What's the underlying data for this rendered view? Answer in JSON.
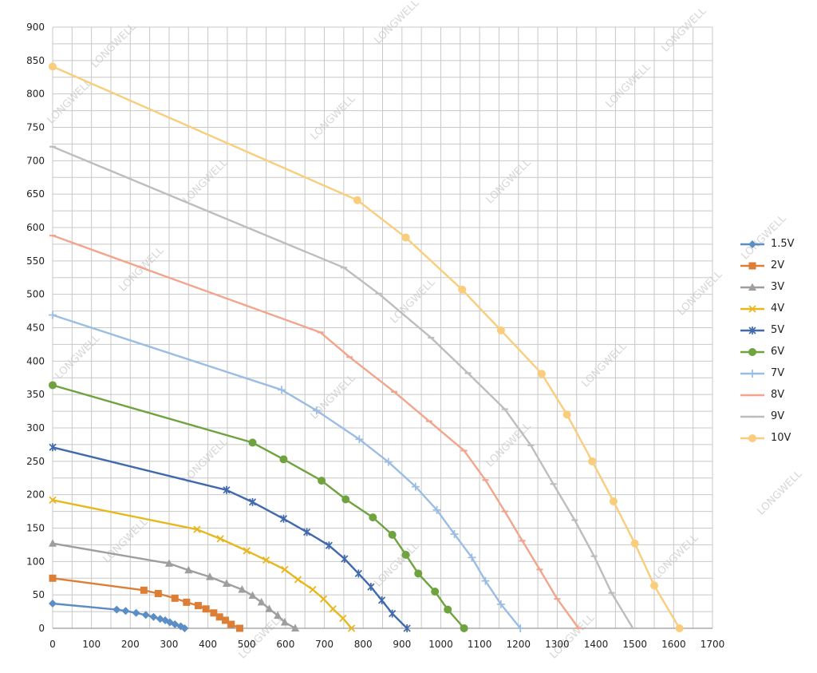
{
  "watermark": "LONGWELL",
  "chart_data": {
    "type": "line",
    "title": "",
    "xlabel": "",
    "ylabel": "",
    "xlim": [
      0,
      1700
    ],
    "ylim": [
      0,
      900
    ],
    "x_ticks": [
      0,
      100,
      200,
      300,
      400,
      500,
      600,
      700,
      800,
      900,
      1000,
      1100,
      1200,
      1300,
      1400,
      1500,
      1600,
      1700
    ],
    "y_ticks": [
      0,
      50,
      100,
      150,
      200,
      250,
      300,
      350,
      400,
      450,
      500,
      550,
      600,
      650,
      700,
      750,
      800,
      850,
      900
    ],
    "grid": true,
    "legend_position": "right",
    "series": [
      {
        "name": "1.5V",
        "color": "#5b8ec4",
        "marker": "diamond",
        "points": [
          [
            0,
            37
          ],
          [
            165,
            28
          ],
          [
            188,
            26
          ],
          [
            215,
            23
          ],
          [
            240,
            20
          ],
          [
            260,
            17
          ],
          [
            277,
            14
          ],
          [
            290,
            12
          ],
          [
            302,
            9
          ],
          [
            315,
            6
          ],
          [
            330,
            3
          ],
          [
            340,
            0
          ]
        ]
      },
      {
        "name": "2V",
        "color": "#dd7e36",
        "marker": "square",
        "points": [
          [
            0,
            75
          ],
          [
            235,
            57
          ],
          [
            272,
            52
          ],
          [
            315,
            45
          ],
          [
            345,
            39
          ],
          [
            375,
            34
          ],
          [
            395,
            29
          ],
          [
            415,
            23
          ],
          [
            430,
            17
          ],
          [
            445,
            12
          ],
          [
            460,
            6
          ],
          [
            482,
            0
          ]
        ]
      },
      {
        "name": "3V",
        "color": "#9e9e9e",
        "marker": "triangle",
        "points": [
          [
            0,
            127
          ],
          [
            300,
            97
          ],
          [
            350,
            87
          ],
          [
            405,
            77
          ],
          [
            448,
            67
          ],
          [
            488,
            58
          ],
          [
            515,
            49
          ],
          [
            538,
            39
          ],
          [
            558,
            29
          ],
          [
            580,
            19
          ],
          [
            598,
            9
          ],
          [
            625,
            0
          ]
        ]
      },
      {
        "name": "4V",
        "color": "#e8b71e",
        "marker": "x",
        "points": [
          [
            0,
            192
          ],
          [
            372,
            148
          ],
          [
            432,
            134
          ],
          [
            500,
            116
          ],
          [
            550,
            102
          ],
          [
            598,
            88
          ],
          [
            632,
            73
          ],
          [
            670,
            58
          ],
          [
            698,
            44
          ],
          [
            722,
            29
          ],
          [
            748,
            15
          ],
          [
            770,
            0
          ]
        ]
      },
      {
        "name": "5V",
        "color": "#4169ad",
        "marker": "star",
        "points": [
          [
            0,
            271
          ],
          [
            448,
            207
          ],
          [
            515,
            189
          ],
          [
            595,
            164
          ],
          [
            655,
            144
          ],
          [
            712,
            124
          ],
          [
            752,
            104
          ],
          [
            788,
            82
          ],
          [
            820,
            62
          ],
          [
            848,
            42
          ],
          [
            875,
            22
          ],
          [
            913,
            0
          ]
        ]
      },
      {
        "name": "6V",
        "color": "#6ea33f",
        "marker": "circle",
        "points": [
          [
            0,
            364
          ],
          [
            515,
            278
          ],
          [
            595,
            253
          ],
          [
            693,
            221
          ],
          [
            755,
            193
          ],
          [
            825,
            166
          ],
          [
            875,
            140
          ],
          [
            910,
            110
          ],
          [
            942,
            82
          ],
          [
            985,
            55
          ],
          [
            1018,
            28
          ],
          [
            1060,
            0
          ]
        ]
      },
      {
        "name": "7V",
        "color": "#9cbde3",
        "marker": "plus",
        "points": [
          [
            0,
            469
          ],
          [
            590,
            357
          ],
          [
            680,
            326
          ],
          [
            790,
            283
          ],
          [
            865,
            249
          ],
          [
            935,
            212
          ],
          [
            990,
            177
          ],
          [
            1035,
            141
          ],
          [
            1080,
            106
          ],
          [
            1115,
            71
          ],
          [
            1155,
            36
          ],
          [
            1205,
            0
          ]
        ]
      },
      {
        "name": "8V",
        "color": "#f2a58c",
        "marker": "dash",
        "points": [
          [
            0,
            588
          ],
          [
            690,
            443
          ],
          [
            765,
            406
          ],
          [
            880,
            354
          ],
          [
            970,
            310
          ],
          [
            1060,
            266
          ],
          [
            1115,
            222
          ],
          [
            1165,
            175
          ],
          [
            1210,
            131
          ],
          [
            1255,
            88
          ],
          [
            1300,
            44
          ],
          [
            1355,
            0
          ]
        ]
      },
      {
        "name": "9V",
        "color": "#bdbdbd",
        "marker": "dash",
        "points": [
          [
            0,
            721
          ],
          [
            750,
            540
          ],
          [
            840,
            501
          ],
          [
            975,
            435
          ],
          [
            1070,
            382
          ],
          [
            1165,
            328
          ],
          [
            1232,
            274
          ],
          [
            1290,
            216
          ],
          [
            1345,
            162
          ],
          [
            1395,
            108
          ],
          [
            1440,
            53
          ],
          [
            1495,
            0
          ]
        ]
      },
      {
        "name": "10V",
        "color": "#f9cd7c",
        "marker": "circle",
        "points": [
          [
            0,
            841
          ],
          [
            785,
            641
          ],
          [
            910,
            585
          ],
          [
            1055,
            507
          ],
          [
            1155,
            446
          ],
          [
            1260,
            381
          ],
          [
            1325,
            320
          ],
          [
            1390,
            250
          ],
          [
            1445,
            190
          ],
          [
            1500,
            127
          ],
          [
            1550,
            64
          ],
          [
            1615,
            0
          ]
        ]
      }
    ]
  }
}
